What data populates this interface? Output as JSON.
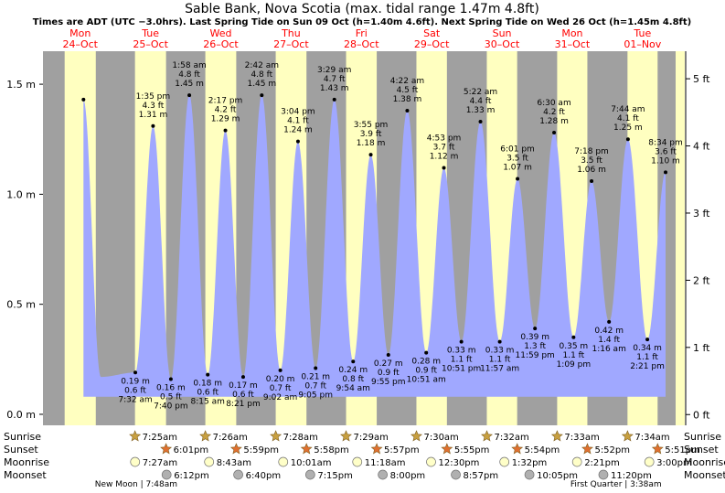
{
  "chart_data": {
    "type": "area",
    "title": "Sable Bank, Nova Scotia (max. tidal range 1.47m 4.8ft)",
    "subtitle": "Times are ADT (UTC −3.0hrs). Last Spring Tide on Sun 09 Oct (h=1.40m 4.6ft). Next Spring Tide on Wed 26 Oct (h=1.45m 4.8ft)",
    "x_start": "2022-10-24 00:00",
    "x_end": "2022-11-01 24:00",
    "ylim_m": [
      -0.05,
      1.65
    ],
    "ylim_ft": [
      -0.16,
      5.41
    ],
    "ticks_left": [
      {
        "value": 0.0,
        "label": "0.0 m"
      },
      {
        "value": 0.5,
        "label": "0.5 m"
      },
      {
        "value": 1.0,
        "label": "1.0 m"
      },
      {
        "value": 1.5,
        "label": "1.5 m"
      }
    ],
    "ticks_right": [
      {
        "value": 0,
        "label": "0 ft"
      },
      {
        "value": 1,
        "label": "1 ft"
      },
      {
        "value": 2,
        "label": "2 ft"
      },
      {
        "value": 3,
        "label": "3 ft"
      },
      {
        "value": 4,
        "label": "4 ft"
      },
      {
        "value": 5,
        "label": "5 ft"
      }
    ],
    "days": [
      {
        "dow": "Mon",
        "date": "24–Oct",
        "sunrise": "2022-10-24 07:24",
        "sunset": "2022-10-24 18:02"
      },
      {
        "dow": "Tue",
        "date": "25–Oct",
        "sunrise": "2022-10-25 07:25",
        "sunset": "2022-10-25 18:01"
      },
      {
        "dow": "Wed",
        "date": "26–Oct",
        "sunrise": "2022-10-26 07:26",
        "sunset": "2022-10-26 17:59"
      },
      {
        "dow": "Thu",
        "date": "27–Oct",
        "sunrise": "2022-10-27 07:28",
        "sunset": "2022-10-27 17:58"
      },
      {
        "dow": "Fri",
        "date": "28–Oct",
        "sunrise": "2022-10-28 07:29",
        "sunset": "2022-10-28 17:57"
      },
      {
        "dow": "Sat",
        "date": "29–Oct",
        "sunrise": "2022-10-29 07:30",
        "sunset": "2022-10-29 17:55"
      },
      {
        "dow": "Sun",
        "date": "30–Oct",
        "sunrise": "2022-10-30 07:32",
        "sunset": "2022-10-30 17:54"
      },
      {
        "dow": "Mon",
        "date": "31–Oct",
        "sunrise": "2022-10-31 07:33",
        "sunset": "2022-10-31 17:52"
      },
      {
        "dow": "Tue",
        "date": "01–Nov",
        "sunrise": "2022-11-01 07:34",
        "sunset": "2022-11-01 17:51"
      }
    ],
    "tides": [
      {
        "t": "2022-10-24 13:50",
        "h": 1.43
      },
      {
        "t": "2022-10-24 19:45",
        "h": 0.17,
        "hide": true
      },
      {
        "t": "2022-10-25 07:32",
        "h": 0.19,
        "time": "7:32 am",
        "ft": "0.6 ft",
        "m": "0.19 m",
        "type": "low"
      },
      {
        "t": "2022-10-25 13:35",
        "h": 1.31,
        "time": "1:35 pm",
        "ft": "4.3 ft",
        "m": "1.31 m",
        "type": "high"
      },
      {
        "t": "2022-10-25 19:40",
        "h": 0.16,
        "time": "7:40 pm",
        "ft": "0.5 ft",
        "m": "0.16 m",
        "type": "low"
      },
      {
        "t": "2022-10-26 01:58",
        "h": 1.45,
        "time": "1:58 am",
        "ft": "4.8 ft",
        "m": "1.45 m",
        "type": "high"
      },
      {
        "t": "2022-10-26 08:15",
        "h": 0.18,
        "time": "8:15 am",
        "ft": "0.6 ft",
        "m": "0.18 m",
        "type": "low"
      },
      {
        "t": "2022-10-26 14:17",
        "h": 1.29,
        "time": "2:17 pm",
        "ft": "4.2 ft",
        "m": "1.29 m",
        "type": "high"
      },
      {
        "t": "2022-10-26 20:21",
        "h": 0.17,
        "time": "8:21 pm",
        "ft": "0.6 ft",
        "m": "0.17 m",
        "type": "low"
      },
      {
        "t": "2022-10-27 02:42",
        "h": 1.45,
        "time": "2:42 am",
        "ft": "4.8 ft",
        "m": "1.45 m",
        "type": "high"
      },
      {
        "t": "2022-10-27 09:02",
        "h": 0.2,
        "time": "9:02 am",
        "ft": "0.7 ft",
        "m": "0.20 m",
        "type": "low"
      },
      {
        "t": "2022-10-27 15:04",
        "h": 1.24,
        "time": "3:04 pm",
        "ft": "4.1 ft",
        "m": "1.24 m",
        "type": "high"
      },
      {
        "t": "2022-10-27 21:05",
        "h": 0.21,
        "time": "9:05 pm",
        "ft": "0.7 ft",
        "m": "0.21 m",
        "type": "low"
      },
      {
        "t": "2022-10-28 03:29",
        "h": 1.43,
        "time": "3:29 am",
        "ft": "4.7 ft",
        "m": "1.43 m",
        "type": "high"
      },
      {
        "t": "2022-10-28 09:54",
        "h": 0.24,
        "time": "9:54 am",
        "ft": "0.8 ft",
        "m": "0.24 m",
        "type": "low"
      },
      {
        "t": "2022-10-28 15:55",
        "h": 1.18,
        "time": "3:55 pm",
        "ft": "3.9 ft",
        "m": "1.18 m",
        "type": "high"
      },
      {
        "t": "2022-10-28 21:55",
        "h": 0.27,
        "time": "9:55 pm",
        "ft": "0.9 ft",
        "m": "0.27 m",
        "type": "low"
      },
      {
        "t": "2022-10-29 04:22",
        "h": 1.38,
        "time": "4:22 am",
        "ft": "4.5 ft",
        "m": "1.38 m",
        "type": "high"
      },
      {
        "t": "2022-10-29 10:51",
        "h": 0.28,
        "time": "10:51 am",
        "ft": "0.9 ft",
        "m": "0.28 m",
        "type": "low"
      },
      {
        "t": "2022-10-29 16:53",
        "h": 1.12,
        "time": "4:53 pm",
        "ft": "3.7 ft",
        "m": "1.12 m",
        "type": "high"
      },
      {
        "t": "2022-10-29 22:51",
        "h": 0.33,
        "time": "10:51 pm",
        "ft": "1.1 ft",
        "m": "0.33 m",
        "type": "low"
      },
      {
        "t": "2022-10-30 05:22",
        "h": 1.33,
        "time": "5:22 am",
        "ft": "4.4 ft",
        "m": "1.33 m",
        "type": "high"
      },
      {
        "t": "2022-10-30 11:57",
        "h": 0.33,
        "time": "11:57 am",
        "ft": "1.1 ft",
        "m": "0.33 m",
        "type": "low"
      },
      {
        "t": "2022-10-30 18:01",
        "h": 1.07,
        "time": "6:01 pm",
        "ft": "3.5 ft",
        "m": "1.07 m",
        "type": "high"
      },
      {
        "t": "2022-10-30 23:59",
        "h": 0.39,
        "time": "11:59 pm",
        "ft": "1.3 ft",
        "m": "0.39 m",
        "type": "low"
      },
      {
        "t": "2022-10-31 06:30",
        "h": 1.28,
        "time": "6:30 am",
        "ft": "4.2 ft",
        "m": "1.28 m",
        "type": "high"
      },
      {
        "t": "2022-10-31 13:09",
        "h": 0.35,
        "time": "1:09 pm",
        "ft": "1.1 ft",
        "m": "0.35 m",
        "type": "low"
      },
      {
        "t": "2022-10-31 19:18",
        "h": 1.06,
        "time": "7:18 pm",
        "ft": "3.5 ft",
        "m": "1.06 m",
        "type": "high"
      },
      {
        "t": "2022-11-01 01:16",
        "h": 0.42,
        "time": "1:16 am",
        "ft": "1.4 ft",
        "m": "0.42 m",
        "type": "low"
      },
      {
        "t": "2022-11-01 07:44",
        "h": 1.25,
        "time": "7:44 am",
        "ft": "4.1 ft",
        "m": "1.25 m",
        "type": "high"
      },
      {
        "t": "2022-11-01 14:21",
        "h": 0.34,
        "time": "2:21 pm",
        "ft": "1.1 ft",
        "m": "0.34 m",
        "type": "low"
      },
      {
        "t": "2022-11-01 20:34",
        "h": 1.1,
        "time": "8:34 pm",
        "ft": "3.6 ft",
        "m": "1.10 m",
        "type": "high"
      }
    ],
    "rows": {
      "sunrise_label": "Sunrise",
      "sunset_label": "Sunset",
      "moonrise_label": "Moonrise",
      "moonset_label": "Moonset"
    },
    "sunrise_events": [
      {
        "t": "2022-10-25 07:25",
        "label": "7:25am"
      },
      {
        "t": "2022-10-26 07:26",
        "label": "7:26am"
      },
      {
        "t": "2022-10-27 07:28",
        "label": "7:28am"
      },
      {
        "t": "2022-10-28 07:29",
        "label": "7:29am"
      },
      {
        "t": "2022-10-29 07:30",
        "label": "7:30am"
      },
      {
        "t": "2022-10-30 07:32",
        "label": "7:32am"
      },
      {
        "t": "2022-10-31 07:33",
        "label": "7:33am"
      },
      {
        "t": "2022-11-01 07:34",
        "label": "7:34am"
      }
    ],
    "sunset_events": [
      {
        "t": "2022-10-25 18:01",
        "label": "6:01pm"
      },
      {
        "t": "2022-10-26 17:59",
        "label": "5:59pm"
      },
      {
        "t": "2022-10-27 17:58",
        "label": "5:58pm"
      },
      {
        "t": "2022-10-28 17:57",
        "label": "5:57pm"
      },
      {
        "t": "2022-10-29 17:55",
        "label": "5:55pm"
      },
      {
        "t": "2022-10-30 17:54",
        "label": "5:54pm"
      },
      {
        "t": "2022-10-31 17:52",
        "label": "5:52pm"
      },
      {
        "t": "2022-11-01 17:51",
        "label": "5:51pm"
      }
    ],
    "moonrise_events": [
      {
        "t": "2022-10-25 07:27",
        "label": "7:27am"
      },
      {
        "t": "2022-10-26 08:43",
        "label": "8:43am"
      },
      {
        "t": "2022-10-27 10:01",
        "label": "10:01am"
      },
      {
        "t": "2022-10-28 11:18",
        "label": "11:18am"
      },
      {
        "t": "2022-10-29 12:30",
        "label": "12:30pm"
      },
      {
        "t": "2022-10-30 13:32",
        "label": "1:32pm"
      },
      {
        "t": "2022-10-31 14:21",
        "label": "2:21pm"
      },
      {
        "t": "2022-11-01 15:00",
        "label": "3:00pm"
      }
    ],
    "moonset_events": [
      {
        "t": "2022-10-25 18:12",
        "label": "6:12pm"
      },
      {
        "t": "2022-10-26 18:40",
        "label": "6:40pm"
      },
      {
        "t": "2022-10-27 19:15",
        "label": "7:15pm"
      },
      {
        "t": "2022-10-28 20:00",
        "label": "8:00pm"
      },
      {
        "t": "2022-10-29 20:57",
        "label": "8:57pm"
      },
      {
        "t": "2022-10-30 22:05",
        "label": "10:05pm"
      },
      {
        "t": "2022-10-31 23:20",
        "label": "11:20pm"
      }
    ],
    "moon_phase_notes": [
      {
        "t": "2022-10-25 07:48",
        "line1": "New Moon | 7:48am",
        "line2": ""
      },
      {
        "t": "2022-11-01 03:38",
        "line1": "First Quarter | 3:38am",
        "line2": "3:38am"
      }
    ],
    "colors": {
      "night": "#a0a0a0",
      "day": "#ffffc0",
      "water": "#a0a8ff",
      "day_label": "#ff0000",
      "sun_star": "#c8a040",
      "sunset_star": "#e07030",
      "moonrise": "#ffffc8",
      "moonset": "#b0b0b0"
    }
  }
}
